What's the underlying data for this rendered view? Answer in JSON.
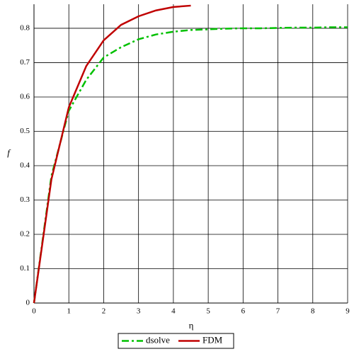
{
  "chart_data": {
    "type": "line",
    "x_label": "η",
    "y_label": "f",
    "series": [
      {
        "name": "dsolve",
        "color": "#00c000",
        "dash": "dash-dot",
        "x": [
          0,
          0.5,
          1,
          1.5,
          2,
          2.5,
          3,
          3.5,
          4,
          4.5,
          5,
          5.5,
          6,
          6.5,
          7,
          7.5,
          8,
          8.5,
          9
        ],
        "values": [
          0,
          0.37,
          0.56,
          0.65,
          0.715,
          0.745,
          0.768,
          0.782,
          0.79,
          0.795,
          0.797,
          0.799,
          0.8,
          0.8,
          0.801,
          0.802,
          0.802,
          0.803,
          0.803
        ]
      },
      {
        "name": "FDM",
        "color": "#c00000",
        "dash": "solid",
        "x": [
          0,
          0.5,
          1,
          1.5,
          2,
          2.5,
          3,
          3.5,
          4,
          4.5
        ],
        "values": [
          0,
          0.36,
          0.57,
          0.69,
          0.765,
          0.81,
          0.835,
          0.852,
          0.862,
          0.866
        ]
      }
    ],
    "xlim": [
      0,
      9
    ],
    "ylim": [
      0,
      0.87
    ],
    "xticks": [
      0,
      1,
      2,
      3,
      4,
      5,
      6,
      7,
      8,
      9
    ],
    "yticks": [
      0,
      0.1,
      0.2,
      0.3,
      0.4,
      0.5,
      0.6,
      0.7,
      0.8
    ],
    "grid": true,
    "legend": "bottom"
  }
}
